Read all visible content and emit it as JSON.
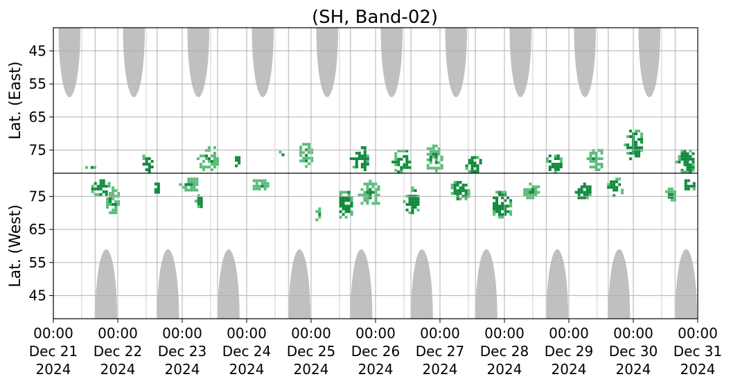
{
  "chart_data": {
    "type": "heatmap",
    "title": "(SH, Band-02)",
    "ylabel_top": "Lat. (East)",
    "ylabel_bottom": "Lat. (West)",
    "grid": true,
    "x_range_days": [
      0,
      10
    ],
    "x_ticks": [
      {
        "time": "00:00",
        "date": "Dec 21",
        "year": "2024",
        "day": 0
      },
      {
        "time": "00:00",
        "date": "Dec 22",
        "year": "2024",
        "day": 1
      },
      {
        "time": "00:00",
        "date": "Dec 23",
        "year": "2024",
        "day": 2
      },
      {
        "time": "00:00",
        "date": "Dec 24",
        "year": "2024",
        "day": 3
      },
      {
        "time": "00:00",
        "date": "Dec 25",
        "year": "2024",
        "day": 4
      },
      {
        "time": "00:00",
        "date": "Dec 26",
        "year": "2024",
        "day": 5
      },
      {
        "time": "00:00",
        "date": "Dec 27",
        "year": "2024",
        "day": 6
      },
      {
        "time": "00:00",
        "date": "Dec 28",
        "year": "2024",
        "day": 7
      },
      {
        "time": "00:00",
        "date": "Dec 29",
        "year": "2024",
        "day": 8
      },
      {
        "time": "00:00",
        "date": "Dec 30",
        "year": "2024",
        "day": 9
      },
      {
        "time": "00:00",
        "date": "Dec 31",
        "year": "2024",
        "day": 10
      }
    ],
    "y_ticks_east": [
      "45",
      "55",
      "65",
      "75"
    ],
    "y_ticks_west": [
      "75",
      "65",
      "55",
      "45"
    ],
    "y_tick_values_east": [
      45,
      55,
      65,
      75
    ],
    "y_tick_values_west": [
      75,
      65,
      55,
      45
    ],
    "y_range_per_panel": [
      38,
      82
    ],
    "colors": {
      "no_data_gray": "#c0c0c0",
      "high_green": "#0f8a3c",
      "low_green": "#5bbd7a",
      "grid": "#b0b0b0",
      "divider": "#000000"
    },
    "gray_regions": {
      "east_centers_day": [
        0.25,
        1.25,
        2.25,
        3.25,
        4.25,
        5.25,
        6.25,
        7.25,
        8.25,
        9.25
      ],
      "west_centers_day": [
        0.82,
        1.78,
        2.72,
        3.82,
        4.78,
        5.72,
        6.72,
        7.82,
        8.78,
        9.82
      ],
      "peak_lat_edge": 59,
      "half_width_days": 0.17
    },
    "activity_clusters": [
      {
        "day": 0.55,
        "lat": 80,
        "hemi": "east",
        "w": 0.2,
        "h": 2,
        "level": "low"
      },
      {
        "day": 0.72,
        "lat": 78,
        "hemi": "west",
        "w": 0.35,
        "h": 6,
        "level": "high"
      },
      {
        "day": 0.9,
        "lat": 74,
        "hemi": "west",
        "w": 0.25,
        "h": 8,
        "level": "low"
      },
      {
        "day": 1.45,
        "lat": 79,
        "hemi": "east",
        "w": 0.22,
        "h": 7,
        "level": "high"
      },
      {
        "day": 1.6,
        "lat": 78,
        "hemi": "west",
        "w": 0.15,
        "h": 4,
        "level": "high"
      },
      {
        "day": 2.1,
        "lat": 79,
        "hemi": "west",
        "w": 0.3,
        "h": 5,
        "level": "low"
      },
      {
        "day": 2.25,
        "lat": 74,
        "hemi": "west",
        "w": 0.12,
        "h": 5,
        "level": "high"
      },
      {
        "day": 2.4,
        "lat": 77,
        "hemi": "east",
        "w": 0.35,
        "h": 8,
        "level": "low"
      },
      {
        "day": 2.85,
        "lat": 78,
        "hemi": "east",
        "w": 0.15,
        "h": 4,
        "level": "high"
      },
      {
        "day": 3.2,
        "lat": 79,
        "hemi": "west",
        "w": 0.3,
        "h": 4,
        "level": "low"
      },
      {
        "day": 3.55,
        "lat": 75,
        "hemi": "east",
        "w": 0.1,
        "h": 3,
        "level": "high"
      },
      {
        "day": 3.9,
        "lat": 76,
        "hemi": "east",
        "w": 0.25,
        "h": 8,
        "level": "low"
      },
      {
        "day": 4.1,
        "lat": 70,
        "hemi": "west",
        "w": 0.15,
        "h": 5,
        "level": "low"
      },
      {
        "day": 4.5,
        "lat": 73,
        "hemi": "west",
        "w": 0.3,
        "h": 9,
        "level": "high"
      },
      {
        "day": 4.75,
        "lat": 77,
        "hemi": "east",
        "w": 0.3,
        "h": 8,
        "level": "high"
      },
      {
        "day": 4.9,
        "lat": 76,
        "hemi": "west",
        "w": 0.35,
        "h": 8,
        "level": "low"
      },
      {
        "day": 5.4,
        "lat": 78,
        "hemi": "east",
        "w": 0.3,
        "h": 8,
        "level": "high"
      },
      {
        "day": 5.55,
        "lat": 74,
        "hemi": "west",
        "w": 0.25,
        "h": 8,
        "level": "high"
      },
      {
        "day": 5.9,
        "lat": 77,
        "hemi": "east",
        "w": 0.3,
        "h": 9,
        "level": "low"
      },
      {
        "day": 6.3,
        "lat": 77,
        "hemi": "west",
        "w": 0.35,
        "h": 7,
        "level": "high"
      },
      {
        "day": 6.5,
        "lat": 79,
        "hemi": "east",
        "w": 0.3,
        "h": 6,
        "level": "high"
      },
      {
        "day": 6.95,
        "lat": 73,
        "hemi": "west",
        "w": 0.35,
        "h": 9,
        "level": "high"
      },
      {
        "day": 7.4,
        "lat": 77,
        "hemi": "west",
        "w": 0.3,
        "h": 6,
        "level": "low"
      },
      {
        "day": 7.75,
        "lat": 79,
        "hemi": "east",
        "w": 0.3,
        "h": 7,
        "level": "high"
      },
      {
        "day": 8.2,
        "lat": 77,
        "hemi": "west",
        "w": 0.3,
        "h": 6,
        "level": "high"
      },
      {
        "day": 8.4,
        "lat": 77,
        "hemi": "east",
        "w": 0.25,
        "h": 8,
        "level": "low"
      },
      {
        "day": 8.7,
        "lat": 78,
        "hemi": "west",
        "w": 0.3,
        "h": 7,
        "level": "high"
      },
      {
        "day": 9.0,
        "lat": 73,
        "hemi": "east",
        "w": 0.3,
        "h": 10,
        "level": "high"
      },
      {
        "day": 9.55,
        "lat": 76,
        "hemi": "west",
        "w": 0.2,
        "h": 5,
        "level": "low"
      },
      {
        "day": 9.8,
        "lat": 78,
        "hemi": "east",
        "w": 0.3,
        "h": 8,
        "level": "high"
      },
      {
        "day": 9.85,
        "lat": 79,
        "hemi": "west",
        "w": 0.2,
        "h": 4,
        "level": "high"
      }
    ]
  }
}
